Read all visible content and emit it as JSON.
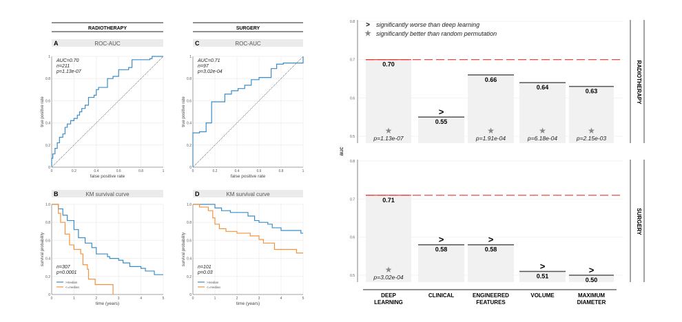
{
  "headers": {
    "radiotherapy": "RADIOTHERAPY",
    "surgery": "SURGERY"
  },
  "chart_data": [
    {
      "panel": "A",
      "type": "line",
      "title": "ROC-AUC",
      "group": "RADIOTHERAPY",
      "xlabel": "false positive rate",
      "ylabel": "true positive rate",
      "xlim": [
        0,
        1
      ],
      "ylim": [
        0,
        1
      ],
      "xticks": [
        "0",
        "0.2",
        "0.4",
        "0.6",
        "0.8",
        "1"
      ],
      "yticks": [
        "0",
        "0.2",
        "0.4",
        "0.6",
        "0.8",
        "1"
      ],
      "annotations": [
        "AUC=0.70",
        "n=211",
        "p=1.13e-07"
      ],
      "color": "#3a8cc8",
      "diagonal": true,
      "x": [
        0,
        0,
        0.01,
        0.03,
        0.05,
        0.07,
        0.1,
        0.12,
        0.14,
        0.17,
        0.2,
        0.23,
        0.25,
        0.27,
        0.3,
        0.33,
        0.38,
        0.4,
        0.42,
        0.5,
        0.55,
        0.6,
        0.69,
        0.72,
        0.88,
        0.9,
        1
      ],
      "y": [
        0,
        0.08,
        0.12,
        0.17,
        0.22,
        0.27,
        0.3,
        0.36,
        0.39,
        0.42,
        0.44,
        0.47,
        0.5,
        0.53,
        0.56,
        0.63,
        0.65,
        0.7,
        0.72,
        0.8,
        0.82,
        0.88,
        0.9,
        0.97,
        0.98,
        1,
        1
      ]
    },
    {
      "panel": "C",
      "type": "line",
      "title": "ROC-AUC",
      "group": "SURGERY",
      "xlabel": "false positive rate",
      "ylabel": "true positive rate",
      "xlim": [
        0,
        1
      ],
      "ylim": [
        0,
        1
      ],
      "xticks": [
        "0",
        "0.2",
        "0.4",
        "0.6",
        "0.8",
        "1"
      ],
      "yticks": [
        "0",
        "0.2",
        "0.4",
        "0.6",
        "0.8",
        "1"
      ],
      "annotations": [
        "AUC=0.71",
        "n=97",
        "p=3.02e-04"
      ],
      "color": "#3a8cc8",
      "diagonal": true,
      "x": [
        0,
        0,
        0.06,
        0.12,
        0.17,
        0.29,
        0.35,
        0.41,
        0.47,
        0.53,
        0.6,
        0.71,
        0.76,
        0.82,
        1,
        1
      ],
      "y": [
        0,
        0.31,
        0.32,
        0.4,
        0.59,
        0.66,
        0.69,
        0.71,
        0.74,
        0.79,
        0.81,
        0.89,
        0.93,
        0.94,
        0.94,
        1
      ]
    },
    {
      "panel": "B",
      "type": "line",
      "title": "KM survival curve",
      "group": "RADIOTHERAPY",
      "xlabel": "time (years)",
      "ylabel": "survival probability",
      "xlim": [
        0,
        5
      ],
      "ylim": [
        0,
        1
      ],
      "xticks": [
        "0",
        "1",
        "2",
        "3",
        "4",
        "5"
      ],
      "yticks": [
        "0",
        "0.2",
        "0.4",
        "0.6",
        "0.8",
        "1.0"
      ],
      "annotations": [
        "n=307",
        "p=0.0001"
      ],
      "series": [
        {
          "name": ">median",
          "color": "#3a8cc8",
          "x": [
            0,
            0.3,
            0.5,
            0.7,
            1,
            1.2,
            1.5,
            1.8,
            2,
            2.5,
            2.6,
            3,
            3.2,
            3.5,
            4,
            4.2,
            4.6,
            5
          ],
          "y": [
            1,
            0.95,
            0.88,
            0.82,
            0.72,
            0.63,
            0.57,
            0.52,
            0.45,
            0.42,
            0.4,
            0.38,
            0.35,
            0.31,
            0.29,
            0.26,
            0.22,
            0.22
          ]
        },
        {
          "name": "<=median",
          "color": "#f5923a",
          "x": [
            0,
            0.3,
            0.4,
            0.6,
            0.8,
            1,
            1.3,
            1.4,
            1.6,
            1.65,
            1.95,
            2.75,
            2.75
          ],
          "y": [
            1,
            0.9,
            0.8,
            0.67,
            0.55,
            0.5,
            0.45,
            0.33,
            0.28,
            0.17,
            0.11,
            0.11,
            0
          ]
        }
      ]
    },
    {
      "panel": "D",
      "type": "line",
      "title": "KM survival curve",
      "group": "SURGERY",
      "xlabel": "time (years)",
      "ylabel": "survival probability",
      "xlim": [
        0,
        5
      ],
      "ylim": [
        0,
        1
      ],
      "xticks": [
        "0",
        "1",
        "2",
        "3",
        "4",
        "5"
      ],
      "yticks": [
        "0",
        "0.2",
        "0.4",
        "0.6",
        "0.8",
        "1.0"
      ],
      "annotations": [
        "n=101",
        "p=0.03"
      ],
      "series": [
        {
          "name": ">median",
          "color": "#3a8cc8",
          "x": [
            0,
            1,
            1,
            1.3,
            1.7,
            2.3,
            2.5,
            2.8,
            3,
            3.4,
            3.6,
            4,
            4.9,
            5
          ],
          "y": [
            1,
            1,
            0.96,
            0.93,
            0.91,
            0.91,
            0.87,
            0.82,
            0.8,
            0.78,
            0.74,
            0.71,
            0.68,
            0.68
          ]
        },
        {
          "name": "<=median",
          "color": "#f5923a",
          "x": [
            0,
            0.3,
            0.7,
            0.9,
            1,
            1.2,
            1.5,
            2,
            2.6,
            3,
            3.2,
            3.7,
            4.7,
            4.7,
            5
          ],
          "y": [
            1,
            0.97,
            0.93,
            0.85,
            0.78,
            0.73,
            0.7,
            0.68,
            0.65,
            0.61,
            0.57,
            0.5,
            0.5,
            0.46,
            0.46
          ]
        }
      ]
    },
    {
      "panel": "bars",
      "type": "bar",
      "ylabel": "auc",
      "ylim": [
        0.5,
        0.8
      ],
      "yticks": [
        "0.5",
        "0.6",
        "0.7",
        "0.8"
      ],
      "categories": [
        "DEEP\nLEARNING",
        "CLINICAL",
        "ENGINEERED\nFEATURES",
        "VOLUME",
        "MAXIMUM\nDIAMETER"
      ],
      "legend": [
        {
          "symbol": ">",
          "label": "significantly worse than deep learning"
        },
        {
          "symbol": "★",
          "label": "significantly better than random permutation"
        }
      ],
      "reference_line_color": "#e8322e",
      "facets": [
        {
          "name": "RADIOTHERAPY",
          "values": [
            0.7,
            0.55,
            0.66,
            0.64,
            0.63
          ],
          "labels": [
            "0.70",
            "0.55",
            "0.66",
            "0.64",
            "0.63"
          ],
          "worse": [
            false,
            true,
            false,
            false,
            false
          ],
          "better": [
            true,
            false,
            true,
            true,
            true
          ],
          "pvalues": [
            "p=1.13e-07",
            "",
            "p=1.91e-04",
            "p=6.18e-04",
            "p=2.15e-03"
          ]
        },
        {
          "name": "SURGERY",
          "values": [
            0.71,
            0.58,
            0.58,
            0.51,
            0.5
          ],
          "labels": [
            "0.71",
            "0.58",
            "0.58",
            "0.51",
            "0.50"
          ],
          "worse": [
            false,
            true,
            true,
            true,
            true
          ],
          "better": [
            true,
            false,
            false,
            false,
            false
          ],
          "pvalues": [
            "p=3.02e-04",
            "",
            "",
            "",
            ""
          ]
        }
      ]
    }
  ]
}
